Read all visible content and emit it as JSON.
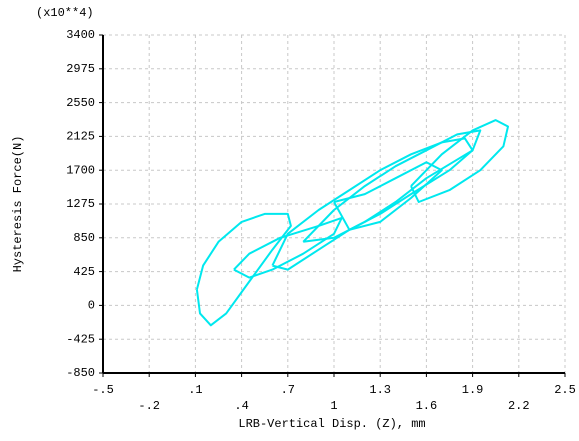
{
  "chart_data": {
    "type": "line",
    "multiplier_label": "(x10**4)",
    "x_label": "LRB-Vertical Disp. (Z), mm",
    "y_label": "Hysteresis Force(N)",
    "grid": true,
    "xlim": [
      -0.5,
      2.5
    ],
    "ylim": [
      -850,
      3400
    ],
    "xticks": [
      {
        "value": -0.5,
        "label": "-.5"
      },
      {
        "value": -0.2,
        "label": "-.2"
      },
      {
        "value": 0.1,
        "label": ".1"
      },
      {
        "value": 0.4,
        "label": ".4"
      },
      {
        "value": 0.7,
        "label": ".7"
      },
      1,
      1.3,
      1.6,
      1.9,
      2.2,
      2.5
    ],
    "yticks": [
      -850,
      -425,
      0,
      425,
      850,
      1275,
      1700,
      2125,
      2550,
      2975,
      3400
    ],
    "series": [
      {
        "color": "#00e8ee",
        "x": [
          0.11,
          0.15,
          0.25,
          0.4,
          0.55,
          0.7,
          0.72,
          0.6,
          0.45,
          0.3,
          0.2,
          0.13,
          0.11,
          null,
          1.5,
          1.7,
          1.9,
          2.05,
          2.13,
          2.1,
          1.95,
          1.75,
          1.55,
          1.5,
          null,
          0.6,
          0.7,
          0.9,
          1.1,
          1.3,
          1.5,
          1.7,
          1.85,
          1.9,
          1.75,
          1.5,
          1.3,
          1.1,
          0.9,
          0.7,
          0.6,
          null,
          0.35,
          0.45,
          0.65,
          0.9,
          1.05,
          1.0,
          0.8,
          0.6,
          0.45,
          0.35,
          null,
          0.8,
          1.0,
          1.2,
          1.4,
          1.6,
          1.8,
          1.95,
          1.9,
          1.6,
          1.4,
          1.2,
          1.0,
          0.8,
          null,
          1.0,
          1.2,
          1.4,
          1.6,
          1.7,
          1.5,
          1.3,
          1.1,
          1.0
        ],
        "values": [
          200,
          500,
          800,
          1050,
          1150,
          1150,
          1000,
          700,
          300,
          -100,
          -250,
          -100,
          200,
          null,
          1500,
          1900,
          2200,
          2330,
          2250,
          2000,
          1700,
          1450,
          1300,
          1500,
          null,
          500,
          900,
          1200,
          1450,
          1700,
          1900,
          2050,
          2100,
          1950,
          1700,
          1400,
          1150,
          950,
          700,
          450,
          500,
          null,
          450,
          650,
          850,
          1000,
          1100,
          900,
          650,
          450,
          350,
          450,
          null,
          800,
          1200,
          1500,
          1750,
          1950,
          2150,
          2200,
          1950,
          1600,
          1300,
          1050,
          850,
          800,
          null,
          1300,
          1400,
          1600,
          1800,
          1700,
          1350,
          1050,
          950,
          1300
        ]
      }
    ]
  }
}
